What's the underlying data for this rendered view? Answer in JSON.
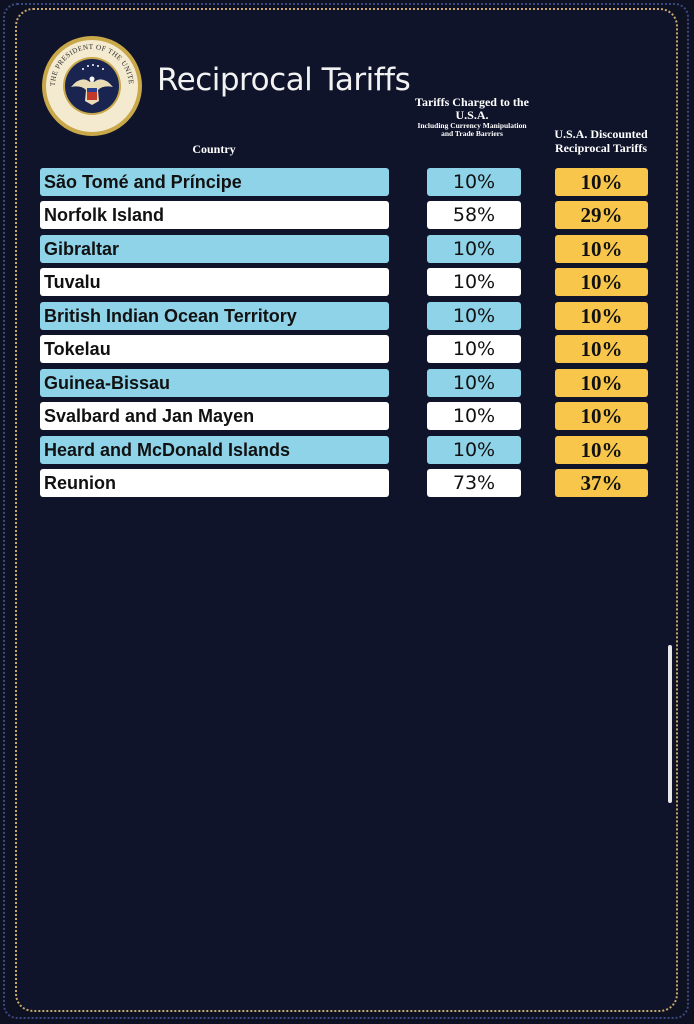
{
  "title": "Reciprocal Tariffs",
  "seal": {
    "top_text": "SEAL OF THE PRESIDENT OF THE UNITED STATES",
    "icon": "presidential-seal"
  },
  "headers": {
    "country": "Country",
    "charged_main": "Tariffs Charged to the U.S.A.",
    "charged_sub": "Including Currency Manipulation and Trade Barriers",
    "discount": "U.S.A. Discounted Reciprocal Tariffs"
  },
  "colors": {
    "background": "#10142a",
    "row_blue": "#8fd3e8",
    "row_white": "#ffffff",
    "discount_yellow": "#f7c64a",
    "border_gold": "#c8a96a"
  },
  "rows": [
    {
      "country": "São Tomé and Príncipe",
      "charged": "10%",
      "discount": "10%"
    },
    {
      "country": "Norfolk Island",
      "charged": "58%",
      "discount": "29%"
    },
    {
      "country": "Gibraltar",
      "charged": "10%",
      "discount": "10%"
    },
    {
      "country": "Tuvalu",
      "charged": "10%",
      "discount": "10%"
    },
    {
      "country": "British Indian Ocean Territory",
      "charged": "10%",
      "discount": "10%"
    },
    {
      "country": "Tokelau",
      "charged": "10%",
      "discount": "10%"
    },
    {
      "country": "Guinea-Bissau",
      "charged": "10%",
      "discount": "10%"
    },
    {
      "country": "Svalbard and Jan Mayen",
      "charged": "10%",
      "discount": "10%"
    },
    {
      "country": "Heard and McDonald Islands",
      "charged": "10%",
      "discount": "10%"
    },
    {
      "country": "Reunion",
      "charged": "73%",
      "discount": "37%"
    }
  ]
}
